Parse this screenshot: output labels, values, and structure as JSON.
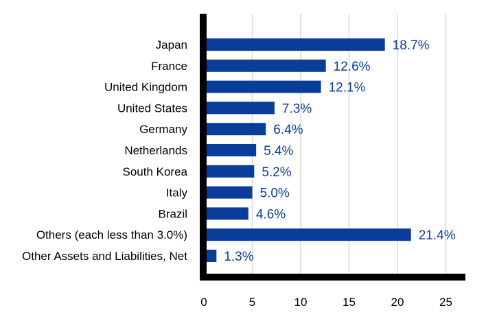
{
  "chart_data": {
    "type": "bar",
    "orientation": "horizontal",
    "categories": [
      "Japan",
      "France",
      "United Kingdom",
      "United States",
      "Germany",
      "Netherlands",
      "South Korea",
      "Italy",
      "Brazil",
      "Others (each less than 3.0%)",
      "Other Assets and Liabilities, Net"
    ],
    "values": [
      18.7,
      12.6,
      12.1,
      7.3,
      6.4,
      5.4,
      5.2,
      5.0,
      4.6,
      21.4,
      1.3
    ],
    "value_labels": [
      "18.7%",
      "12.6%",
      "12.1%",
      "7.3%",
      "6.4%",
      "5.4%",
      "5.2%",
      "5.0%",
      "4.6%",
      "21.4%",
      "1.3%"
    ],
    "x_ticks": [
      "0",
      "5",
      "10",
      "15",
      "20",
      "25"
    ],
    "xlim": [
      0,
      27
    ],
    "title": "",
    "xlabel": "",
    "ylabel": "",
    "grid": "vertical",
    "legend": "none",
    "colors": {
      "bar": "#0a3d9a",
      "value_label": "#0a3d9a",
      "grid": "#d9d9d9",
      "axis": "#000000"
    }
  }
}
